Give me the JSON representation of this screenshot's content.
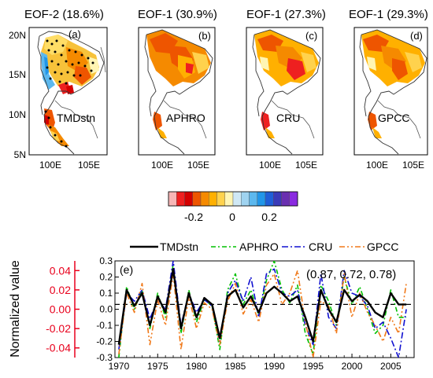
{
  "panels": [
    {
      "title": "EOF-2 (18.6%)",
      "tag": "(a)",
      "label": "TMDstn",
      "yticks": [
        "20N",
        "15N",
        "10N",
        "5N"
      ],
      "xticks": [
        "100E",
        "105E"
      ]
    },
    {
      "title": "EOF-1 (30.9%)",
      "tag": "(b)",
      "label": "APHRO",
      "yticks": [],
      "xticks": [
        "100E",
        "105E"
      ]
    },
    {
      "title": "EOF-1 (27.3%)",
      "tag": "(c)",
      "label": "CRU",
      "yticks": [],
      "xticks": [
        "100E",
        "105E"
      ]
    },
    {
      "title": "EOF-1 (29.3%)",
      "tag": "(d)",
      "label": "GPCC",
      "yticks": [],
      "xticks": [
        "100E",
        "105E"
      ]
    }
  ],
  "colorbar": {
    "colors": [
      "#f7b6b6",
      "#ee2020",
      "#d40000",
      "#ee5500",
      "#f58a00",
      "#ffb000",
      "#ffd24d",
      "#fff5b3",
      "#cfe8f5",
      "#9fd3f0",
      "#5cb8ee",
      "#2196e8",
      "#1f5fd8",
      "#3a3ab8",
      "#6a2fb0",
      "#8a2ae0"
    ],
    "tick_labels": [
      "-0.2",
      "0",
      "0.2"
    ]
  },
  "chart_data": {
    "type": "line",
    "panel_tag": "(e)",
    "ylabel": "Normalized value",
    "x": [
      1970,
      1971,
      1972,
      1973,
      1974,
      1975,
      1976,
      1977,
      1978,
      1979,
      1980,
      1981,
      1982,
      1983,
      1984,
      1985,
      1986,
      1987,
      1988,
      1989,
      1990,
      1991,
      1992,
      1993,
      1994,
      1995,
      1996,
      1997,
      1998,
      1999,
      2000,
      2001,
      2002,
      2003,
      2004,
      2005,
      2006,
      2007
    ],
    "xticks": [
      "1970",
      "1975",
      "1980",
      "1985",
      "1990",
      "1995",
      "2000",
      "2005"
    ],
    "xlim": [
      1969.5,
      2008
    ],
    "y_right": {
      "ylim": [
        -0.3,
        0.3
      ],
      "ticks": [
        "0.3",
        "0.2",
        "0.1",
        "0.0",
        "-0.1",
        "-0.2",
        "-0.3"
      ],
      "color": "#000000"
    },
    "y_left": {
      "ylim": [
        -0.05,
        0.05
      ],
      "ticks": [
        "0.04",
        "0.02",
        "0.00",
        "-0.02",
        "-0.04"
      ],
      "color": "#e8001c"
    },
    "reference_line": 0.03,
    "annotation": "(0.87, 0.72, 0.78)",
    "series": [
      {
        "name": "TMDstn",
        "color": "#000000",
        "dash": "",
        "width": 2.4,
        "values": [
          -0.22,
          0.12,
          0.02,
          0.1,
          -0.1,
          0.08,
          -0.02,
          0.25,
          -0.12,
          0.1,
          -0.05,
          0.07,
          0.03,
          -0.18,
          0.08,
          0.12,
          0.01,
          0.08,
          -0.02,
          0.1,
          0.14,
          0.1,
          0.05,
          0.08,
          -0.05,
          -0.2,
          0.12,
          0.0,
          -0.08,
          0.12,
          0.05,
          0.09,
          0.05,
          -0.02,
          -0.05,
          0.1,
          0.03,
          0.03
        ]
      },
      {
        "name": "APHRO",
        "color": "#00c000",
        "dash": "6,3,2,3",
        "width": 1.6,
        "values": [
          -0.3,
          0.14,
          0.0,
          0.12,
          -0.12,
          0.1,
          -0.05,
          0.28,
          -0.15,
          0.12,
          -0.08,
          0.06,
          0.02,
          -0.25,
          0.12,
          0.22,
          0.03,
          0.12,
          -0.04,
          0.18,
          0.3,
          0.12,
          0.04,
          0.15,
          -0.15,
          -0.28,
          0.15,
          0.05,
          -0.1,
          0.2,
          0.03,
          0.14,
          0.0,
          -0.15,
          -0.1,
          0.12,
          -0.05,
          -0.05
        ]
      },
      {
        "name": "CRU",
        "color": "#1010d0",
        "dash": "8,3,2,3",
        "width": 1.6,
        "values": [
          -0.25,
          0.1,
          0.05,
          0.12,
          -0.06,
          0.06,
          0.0,
          0.3,
          -0.1,
          0.1,
          -0.02,
          0.06,
          0.02,
          -0.2,
          0.1,
          0.18,
          0.05,
          0.2,
          -0.05,
          0.22,
          0.25,
          0.1,
          0.08,
          0.12,
          -0.1,
          -0.22,
          0.22,
          -0.05,
          -0.12,
          0.24,
          0.1,
          0.08,
          0.02,
          -0.12,
          -0.08,
          -0.18,
          -0.3,
          0.0
        ]
      },
      {
        "name": "GPCC",
        "color": "#f07818",
        "dash": "7,3,2,3,2,3",
        "width": 1.6,
        "values": [
          -0.28,
          0.1,
          -0.02,
          0.16,
          -0.22,
          0.06,
          -0.1,
          0.22,
          -0.25,
          0.08,
          -0.12,
          0.04,
          0.0,
          -0.22,
          0.05,
          0.16,
          -0.03,
          0.06,
          -0.08,
          0.15,
          0.22,
          0.03,
          0.1,
          0.24,
          -0.08,
          -0.3,
          0.05,
          0.02,
          -0.15,
          0.22,
          -0.05,
          0.1,
          -0.02,
          -0.1,
          -0.2,
          -0.05,
          -0.15,
          0.16
        ]
      }
    ]
  }
}
